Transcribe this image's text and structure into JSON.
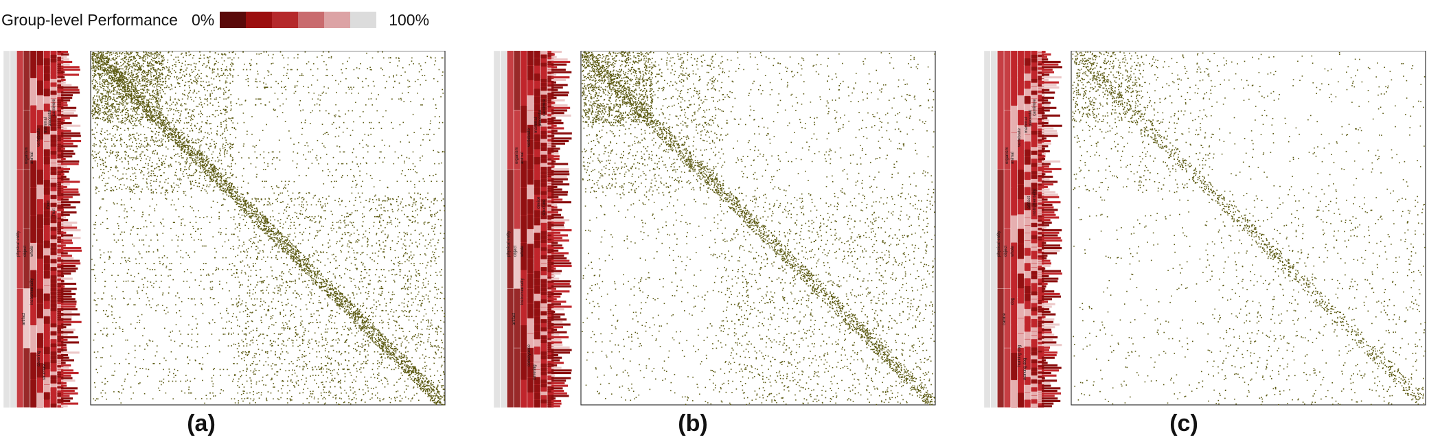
{
  "legend": {
    "title": "Group-level Performance",
    "min_label": "0%",
    "max_label": "100%",
    "colors": [
      "#5a0a0a",
      "#9b0f0f",
      "#b5292b",
      "#c96b6e",
      "#dca3a5",
      "#dcdcdc"
    ]
  },
  "colors": {
    "dot": "#5c5a12",
    "frame": "#333333",
    "hier_light": "#e3e3e3",
    "hier_mid": "#ecc8c8",
    "hier_red": "#c0262b",
    "hier_dark": "#8a0d0d"
  },
  "chart_data": [
    {
      "type": "heatmap",
      "label": "(a)",
      "description_of_marks": "confusion-matrix dot plot",
      "diagonal_blocks": [
        0.0,
        0.4,
        1.0
      ],
      "density": "high",
      "hierarchy_labels": [
        "physical entity",
        "object",
        "whole",
        "organism",
        "animal",
        "vertebrate",
        "mammal",
        "placental",
        "carnivore",
        "artifact",
        "instrumentality",
        "covering",
        "structure",
        "food",
        "fruit"
      ]
    },
    {
      "type": "heatmap",
      "label": "(b)",
      "description_of_marks": "confusion-matrix dot plot",
      "diagonal_blocks": [
        0.0,
        0.4,
        1.0
      ],
      "density": "medium",
      "hierarchy_labels": [
        "physical entity",
        "object",
        "whole",
        "organism",
        "animal",
        "vertebrate",
        "mammal",
        "placental",
        "carnivore",
        "artifact",
        "instrumentality",
        "conveyance",
        "covering",
        "device",
        "structure"
      ]
    },
    {
      "type": "heatmap",
      "label": "(c)",
      "description_of_marks": "confusion-matrix dot plot",
      "diagonal_blocks": [
        0.0,
        0.4,
        1.0
      ],
      "density": "low",
      "hierarchy_labels": [
        "physical entity",
        "object",
        "whole",
        "organism",
        "animal",
        "vertebrate",
        "mammal",
        "placental",
        "carnivore",
        "canine",
        "dog",
        "hunting dog",
        "working dog",
        "artifact",
        "instrumentality"
      ]
    }
  ]
}
